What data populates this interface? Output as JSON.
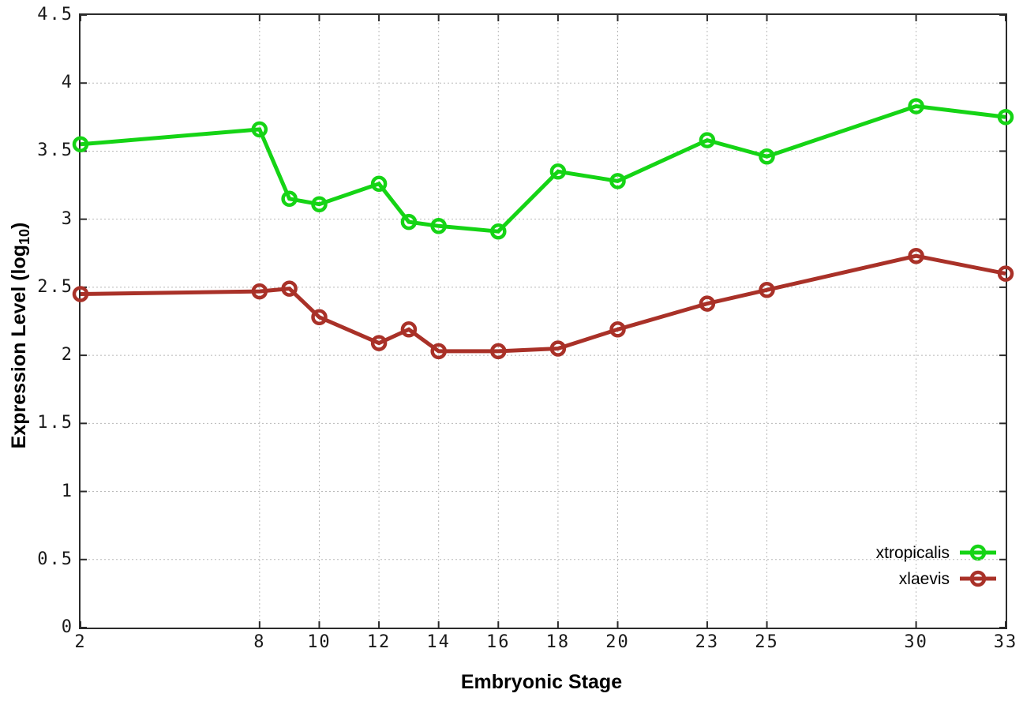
{
  "chart_data": {
    "type": "line",
    "title": "",
    "xlabel": "Embryonic Stage",
    "ylabel": "Expression Level (log10)",
    "ylabel_parts": {
      "pre": "Expression Level (log",
      "sub": "10",
      "post": ")"
    },
    "x": [
      2,
      8,
      9,
      10,
      12,
      13,
      14,
      16,
      18,
      20,
      23,
      25,
      30,
      33
    ],
    "series": [
      {
        "name": "xtropicalis",
        "color": "#15d415",
        "values": [
          3.55,
          3.66,
          3.15,
          3.11,
          3.26,
          2.98,
          2.95,
          2.91,
          3.35,
          3.28,
          3.58,
          3.46,
          3.83,
          3.75
        ]
      },
      {
        "name": "xlaevis",
        "color": "#a93128",
        "values": [
          2.45,
          2.47,
          2.49,
          2.28,
          2.09,
          2.19,
          2.03,
          2.03,
          2.05,
          2.19,
          2.38,
          2.48,
          2.73,
          2.6
        ]
      }
    ],
    "xlim": [
      2,
      33
    ],
    "ylim": [
      0,
      4.5
    ],
    "x_tick_labels": [
      "2",
      "8",
      "10",
      "12",
      "14",
      "16",
      "18",
      "20",
      "23",
      "25",
      "30",
      "33"
    ],
    "y_tick_labels": [
      "0",
      "0.5",
      "1",
      "1.5",
      "2",
      "2.5",
      "3",
      "3.5",
      "4",
      "4.5"
    ],
    "grid": true,
    "legend_position": "inside-bottom-right",
    "colors": {
      "border": "#2b2b2b",
      "grid": "#b8b8b8",
      "tick_text": "#1a1a1a"
    }
  }
}
